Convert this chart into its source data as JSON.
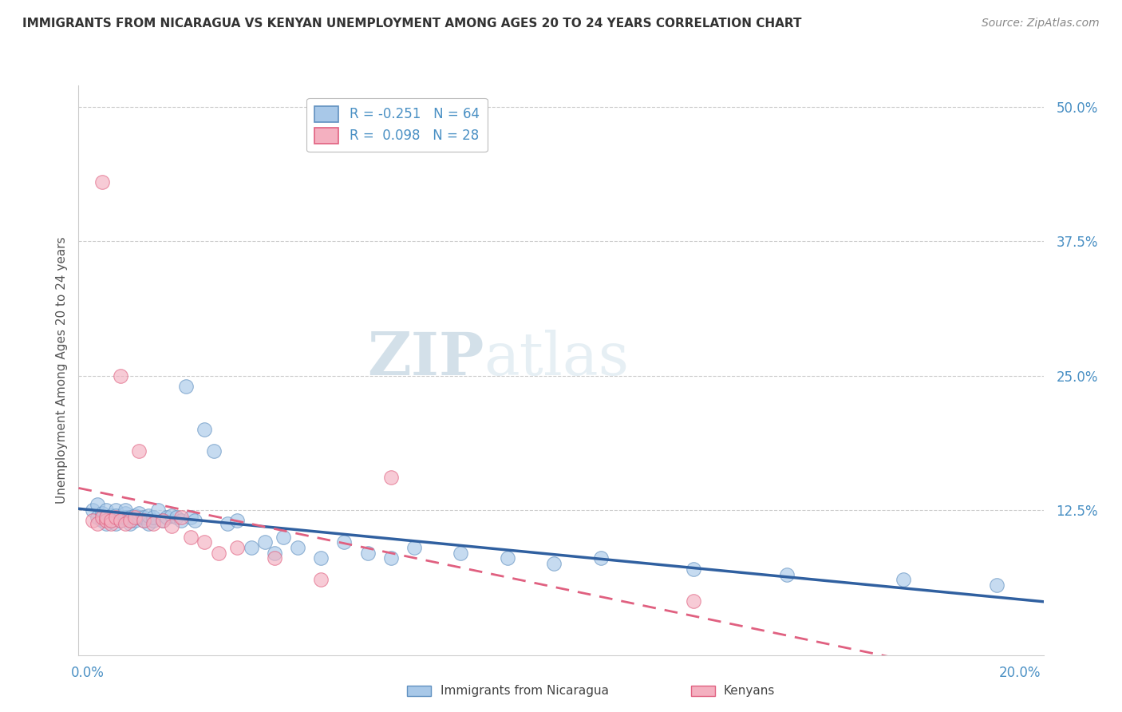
{
  "title": "IMMIGRANTS FROM NICARAGUA VS KENYAN UNEMPLOYMENT AMONG AGES 20 TO 24 YEARS CORRELATION CHART",
  "source": "Source: ZipAtlas.com",
  "ylabel": "Unemployment Among Ages 20 to 24 years",
  "xlim": [
    -0.002,
    0.205
  ],
  "ylim": [
    -0.01,
    0.52
  ],
  "xticks": [
    0.0,
    0.05,
    0.1,
    0.15,
    0.2
  ],
  "xtick_labels": [
    "0.0%",
    "",
    "",
    "",
    "20.0%"
  ],
  "ytick_positions": [
    0.0,
    0.125,
    0.25,
    0.375,
    0.5
  ],
  "ytick_labels": [
    "",
    "12.5%",
    "25.0%",
    "37.5%",
    "50.0%"
  ],
  "blue_color": "#a8c8e8",
  "pink_color": "#f4b0c0",
  "blue_edge_color": "#6090c0",
  "pink_edge_color": "#e06080",
  "blue_line_color": "#3060a0",
  "pink_line_color": "#e06080",
  "legend_blue_label": "R = -0.251   N = 64",
  "legend_pink_label": "R =  0.098   N = 28",
  "watermark_zip": "ZIP",
  "watermark_atlas": "atlas",
  "blue_scatter_x": [
    0.001,
    0.002,
    0.002,
    0.003,
    0.003,
    0.003,
    0.004,
    0.004,
    0.004,
    0.005,
    0.005,
    0.005,
    0.006,
    0.006,
    0.006,
    0.007,
    0.007,
    0.008,
    0.008,
    0.008,
    0.009,
    0.009,
    0.009,
    0.01,
    0.01,
    0.011,
    0.011,
    0.012,
    0.012,
    0.013,
    0.013,
    0.014,
    0.014,
    0.015,
    0.016,
    0.017,
    0.018,
    0.019,
    0.02,
    0.021,
    0.022,
    0.023,
    0.025,
    0.027,
    0.03,
    0.032,
    0.035,
    0.038,
    0.04,
    0.042,
    0.045,
    0.05,
    0.055,
    0.06,
    0.065,
    0.07,
    0.08,
    0.09,
    0.1,
    0.11,
    0.13,
    0.15,
    0.175,
    0.195
  ],
  "blue_scatter_y": [
    0.125,
    0.118,
    0.13,
    0.12,
    0.115,
    0.122,
    0.118,
    0.125,
    0.112,
    0.12,
    0.115,
    0.118,
    0.125,
    0.112,
    0.12,
    0.118,
    0.115,
    0.122,
    0.118,
    0.125,
    0.115,
    0.118,
    0.112,
    0.12,
    0.115,
    0.118,
    0.122,
    0.115,
    0.118,
    0.112,
    0.12,
    0.115,
    0.118,
    0.125,
    0.115,
    0.118,
    0.12,
    0.118,
    0.115,
    0.24,
    0.118,
    0.115,
    0.2,
    0.18,
    0.112,
    0.115,
    0.09,
    0.095,
    0.085,
    0.1,
    0.09,
    0.08,
    0.095,
    0.085,
    0.08,
    0.09,
    0.085,
    0.08,
    0.075,
    0.08,
    0.07,
    0.065,
    0.06,
    0.055
  ],
  "pink_scatter_x": [
    0.001,
    0.002,
    0.003,
    0.003,
    0.004,
    0.004,
    0.005,
    0.005,
    0.006,
    0.007,
    0.007,
    0.008,
    0.009,
    0.01,
    0.011,
    0.012,
    0.014,
    0.016,
    0.018,
    0.02,
    0.022,
    0.025,
    0.028,
    0.032,
    0.04,
    0.05,
    0.065,
    0.13
  ],
  "pink_scatter_y": [
    0.115,
    0.112,
    0.118,
    0.43,
    0.115,
    0.118,
    0.112,
    0.115,
    0.118,
    0.115,
    0.25,
    0.112,
    0.115,
    0.118,
    0.18,
    0.115,
    0.112,
    0.115,
    0.11,
    0.118,
    0.1,
    0.095,
    0.085,
    0.09,
    0.08,
    0.06,
    0.155,
    0.04
  ]
}
